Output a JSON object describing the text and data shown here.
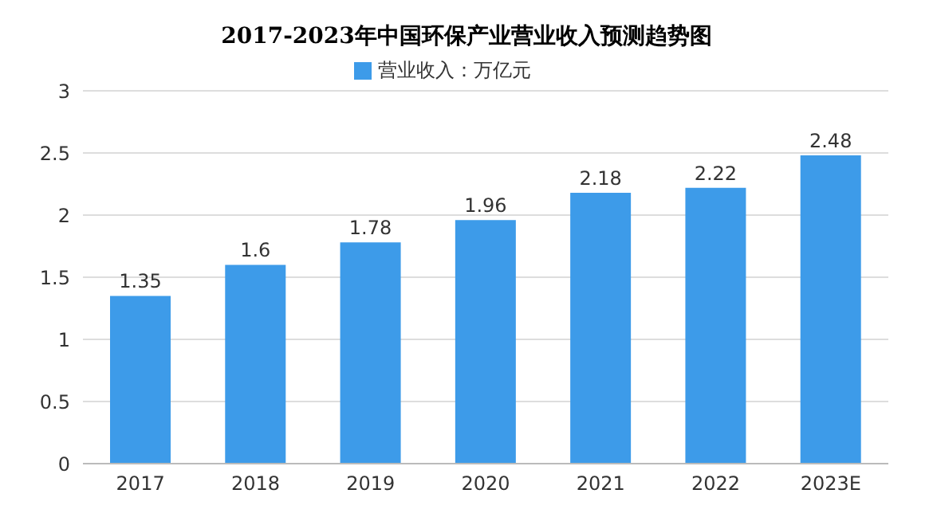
{
  "chart_data": {
    "type": "bar",
    "title": "2017-2023年中国环保产业营业收入预测趋势图",
    "categories": [
      "2017",
      "2018",
      "2019",
      "2020",
      "2021",
      "2022",
      "2023E"
    ],
    "series": [
      {
        "name": "营业收入：万亿元",
        "color": "#3d9be9",
        "values": [
          1.35,
          1.6,
          1.78,
          1.96,
          2.18,
          2.22,
          2.48
        ]
      }
    ],
    "ylim": [
      0,
      3
    ],
    "yticks": [
      0,
      0.5,
      1,
      1.5,
      2,
      2.5,
      3
    ],
    "grid": "y",
    "legend": "top",
    "data_labels": true
  }
}
